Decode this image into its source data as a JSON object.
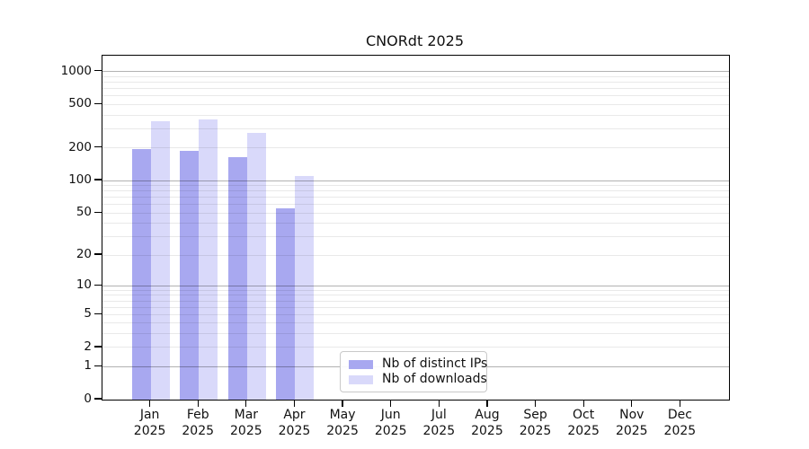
{
  "chart_data": {
    "type": "bar",
    "title": "CNORdt 2025",
    "categories": [
      "Jan",
      "Feb",
      "Mar",
      "Apr",
      "May",
      "Jun",
      "Jul",
      "Aug",
      "Sep",
      "Oct",
      "Nov",
      "Dec"
    ],
    "year": "2025",
    "series": [
      {
        "name": "Nb of distinct IPs",
        "color": "#a8a8f0",
        "values": [
          195,
          187,
          165,
          55,
          null,
          null,
          null,
          null,
          null,
          null,
          null,
          null
        ]
      },
      {
        "name": "Nb of downloads",
        "color": "#d9d9fa",
        "values": [
          348,
          365,
          275,
          110,
          null,
          null,
          null,
          null,
          null,
          null,
          null,
          null
        ]
      }
    ],
    "y_axis": {
      "scale": "log10(value+1)",
      "tick_labels": [
        0,
        1,
        2,
        5,
        10,
        20,
        50,
        100,
        200,
        500,
        1000
      ],
      "major_gridlines": [
        1,
        10,
        100,
        1000
      ],
      "minor_gridlines": [
        2,
        3,
        4,
        5,
        6,
        7,
        8,
        9,
        20,
        30,
        40,
        50,
        60,
        70,
        80,
        90,
        200,
        300,
        400,
        500,
        600,
        700,
        800,
        900
      ],
      "y_max": 1400
    },
    "grid": true,
    "legend_position": "lower center"
  }
}
